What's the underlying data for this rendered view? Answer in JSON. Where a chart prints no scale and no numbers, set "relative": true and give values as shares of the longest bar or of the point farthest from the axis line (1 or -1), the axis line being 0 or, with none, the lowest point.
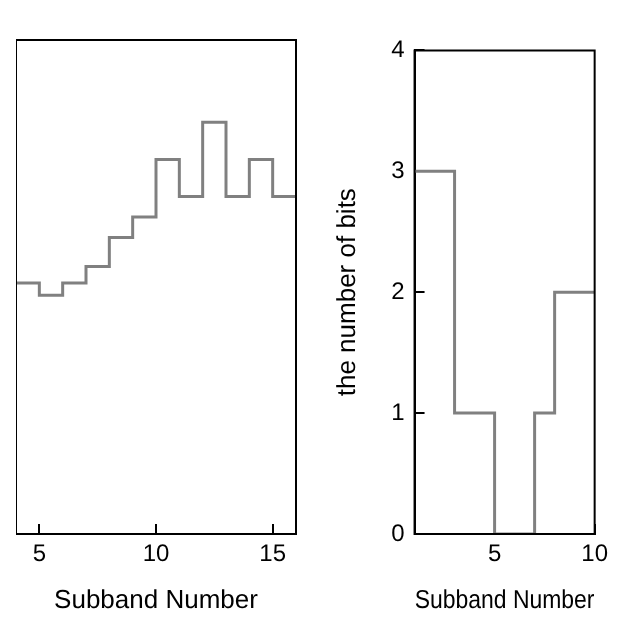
{
  "chart_data": [
    {
      "type": "step",
      "relative": true,
      "x": [
        4,
        5,
        6,
        7,
        8,
        9,
        10,
        11,
        12,
        13,
        14,
        15,
        16
      ],
      "values": [
        0.61,
        0.58,
        0.61,
        0.65,
        0.72,
        0.77,
        0.91,
        0.82,
        1,
        0.82,
        0.91,
        0.82,
        0.82
      ],
      "color": "#808080",
      "xlim": [
        4,
        16
      ],
      "xticks": [
        5,
        10,
        15
      ],
      "xlabel": "Subband Number",
      "grid": false,
      "legend": false
    },
    {
      "type": "step",
      "x": [
        1,
        3,
        5,
        7,
        8,
        10
      ],
      "values": [
        3,
        1,
        0,
        1,
        2,
        2
      ],
      "color": "#808080",
      "xlim": [
        1,
        10
      ],
      "xticks": [
        5,
        10
      ],
      "ylim": [
        0,
        4
      ],
      "yticks": [
        0,
        1,
        2,
        3,
        4
      ],
      "xlabel": "Subband Number",
      "ylabel": "the number of bits",
      "grid": false,
      "legend": false
    }
  ]
}
